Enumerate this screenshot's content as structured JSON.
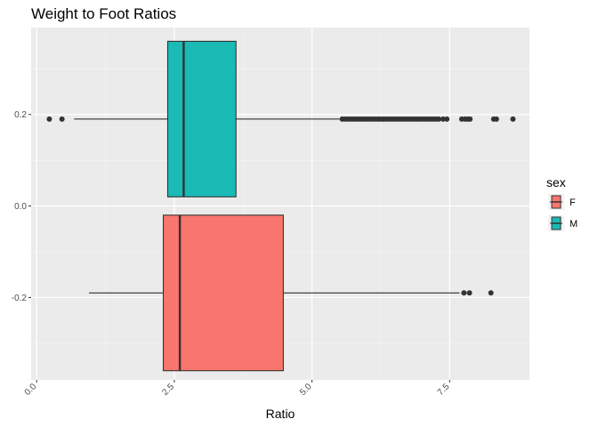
{
  "chart_data": {
    "type": "boxplot",
    "title": "Weight to Foot Ratios",
    "xlabel": "Ratio",
    "ylabel": "",
    "x_ticks": [
      "0.0",
      "2.5",
      "5.0",
      "7.5"
    ],
    "x_tick_values": [
      0,
      2.5,
      5,
      7.5
    ],
    "xlim": [
      -0.1,
      8.95
    ],
    "y_ticks": [
      "0.2",
      "0.0",
      "-0.2"
    ],
    "y_tick_values": [
      0.2,
      0,
      -0.2
    ],
    "ylim": [
      -0.38,
      0.39
    ],
    "grid": true,
    "legend": {
      "title": "sex",
      "position": "right",
      "entries": [
        "F",
        "M"
      ]
    },
    "series": [
      {
        "name": "F",
        "color": "#F8766D",
        "y_center": -0.19,
        "y_halfwidth": 0.17,
        "whisker_low": 0.95,
        "q1": 2.3,
        "median": 2.6,
        "q3": 4.48,
        "whisker_high": 7.68,
        "outliers": [
          7.76,
          7.86,
          8.25
        ]
      },
      {
        "name": "M",
        "color": "#1ABAB5",
        "y_center": 0.19,
        "y_halfwidth": 0.17,
        "whisker_low": 0.68,
        "q1": 2.38,
        "median": 2.67,
        "q3": 3.62,
        "whisker_high": 5.5,
        "outliers": [
          0.23,
          0.46,
          5.55,
          5.6,
          5.65,
          5.7,
          5.75,
          5.8,
          5.85,
          5.9,
          5.95,
          6.0,
          6.05,
          6.1,
          6.15,
          6.2,
          6.25,
          6.3,
          6.35,
          6.4,
          6.45,
          6.5,
          6.55,
          6.6,
          6.65,
          6.7,
          6.75,
          6.8,
          6.85,
          6.9,
          6.95,
          7.0,
          7.05,
          7.1,
          7.15,
          7.2,
          7.25,
          7.3,
          7.38,
          7.45,
          7.72,
          7.78,
          7.83,
          7.87,
          8.3,
          8.35,
          8.65
        ]
      }
    ]
  }
}
